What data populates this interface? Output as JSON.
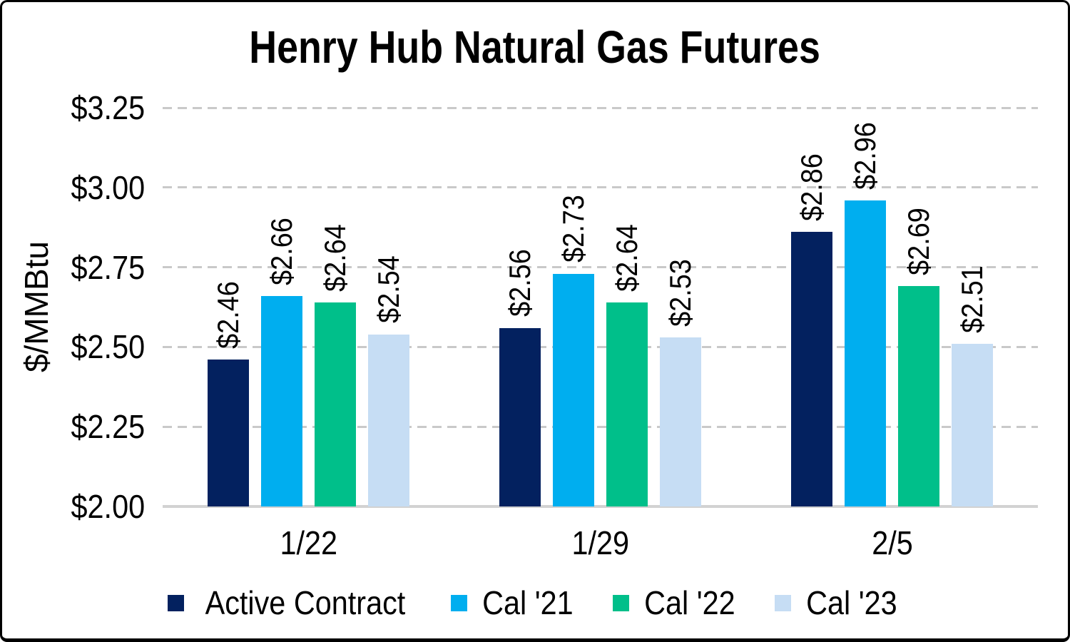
{
  "frame": {
    "background": "#FFFFFF",
    "border_color": "#000000"
  },
  "chart_data": {
    "type": "bar",
    "title": "Henry Hub Natural Gas Futures",
    "ylabel": "$/MMBtu",
    "xlabel": "",
    "categories": [
      "1/22",
      "1/29",
      "2/5"
    ],
    "series": [
      {
        "name": "Active Contract",
        "color": "#03215F",
        "values": [
          2.46,
          2.56,
          2.86
        ],
        "labels": [
          "$2.46",
          "$2.56",
          "$2.86"
        ]
      },
      {
        "name": "Cal '21",
        "color": "#00AEEF",
        "values": [
          2.66,
          2.73,
          2.96
        ],
        "labels": [
          "$2.66",
          "$2.73",
          "$2.96"
        ]
      },
      {
        "name": "Cal '22",
        "color": "#00BF8A",
        "values": [
          2.64,
          2.64,
          2.69
        ],
        "labels": [
          "$2.64",
          "$2.64",
          "$2.69"
        ]
      },
      {
        "name": "Cal '23",
        "color": "#C6DDF4",
        "values": [
          2.54,
          2.53,
          2.51
        ],
        "labels": [
          "$2.54",
          "$2.53",
          "$2.51"
        ]
      }
    ],
    "y_axis": {
      "min": 2.0,
      "max": 3.25,
      "step": 0.25,
      "tick_labels_top_to_bottom": [
        "$3.25",
        "$3.00",
        "$2.75",
        "$2.50",
        "$2.25",
        "$2.00"
      ]
    },
    "gridlines": {
      "orientation": "horizontal",
      "style": "dashed",
      "color": "#C9C9C9"
    },
    "axis_line_color": "#D2D2D2",
    "data_labels": {
      "rotated": true,
      "format": "$0.00"
    },
    "legend_position": "bottom"
  }
}
